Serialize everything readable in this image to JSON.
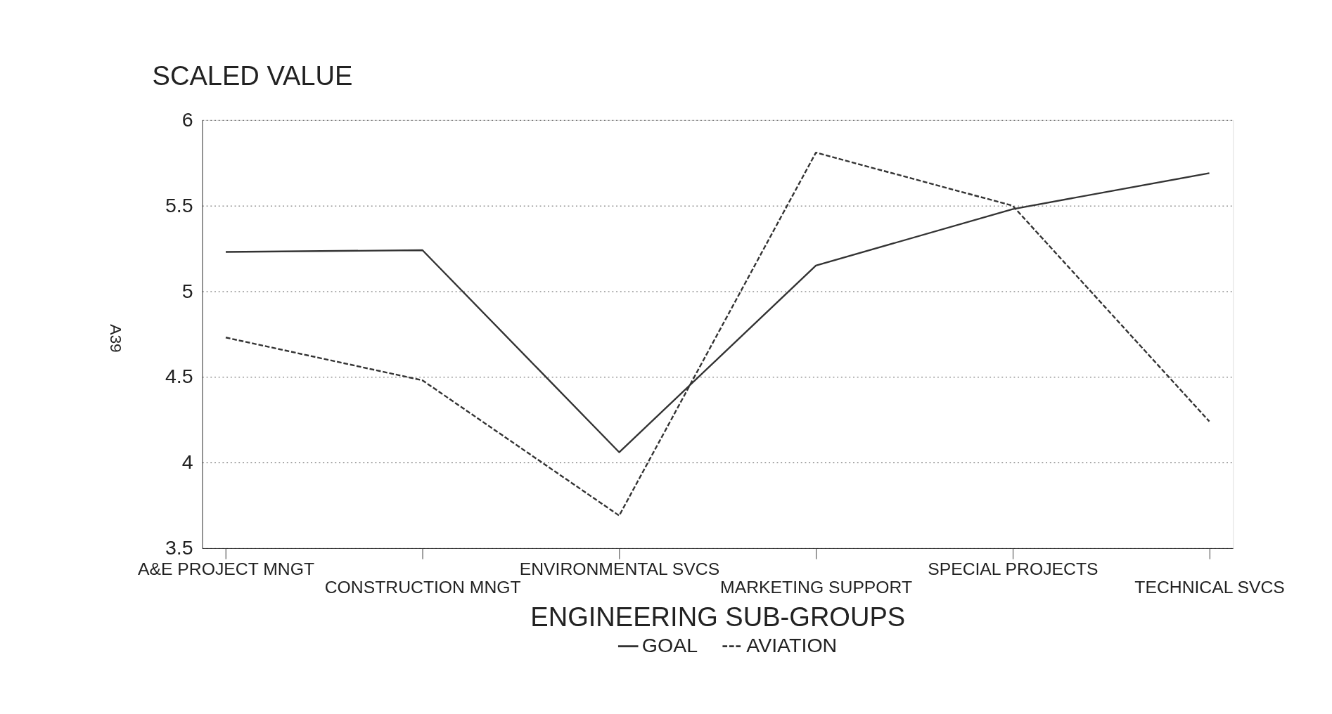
{
  "chart_data": {
    "type": "line",
    "ylabel": "SCALED VALUE",
    "xlabel": "ENGINEERING SUB-GROUPS",
    "categories": [
      "A&E PROJECT MNGT",
      "CONSTRUCTION MNGT",
      "ENVIRONMENTAL SVCS",
      "MARKETING SUPPORT",
      "SPECIAL PROJECTS",
      "TECHNICAL SVCS"
    ],
    "series": [
      {
        "name": "GOAL",
        "color": "#333333",
        "line_style": "solid",
        "values": [
          5.23,
          5.24,
          4.06,
          5.15,
          5.48,
          5.69
        ]
      },
      {
        "name": "AVIATION",
        "color": "#333333",
        "line_style": "dashed",
        "values": [
          4.73,
          4.48,
          3.69,
          5.81,
          5.5,
          4.24
        ]
      }
    ],
    "ylim": [
      3.5,
      6
    ],
    "yticks": [
      3.5,
      4,
      4.5,
      5,
      5.5,
      6
    ],
    "grid": "y",
    "legend": "bottom",
    "marker": "none",
    "annotations": [
      "A39"
    ]
  }
}
